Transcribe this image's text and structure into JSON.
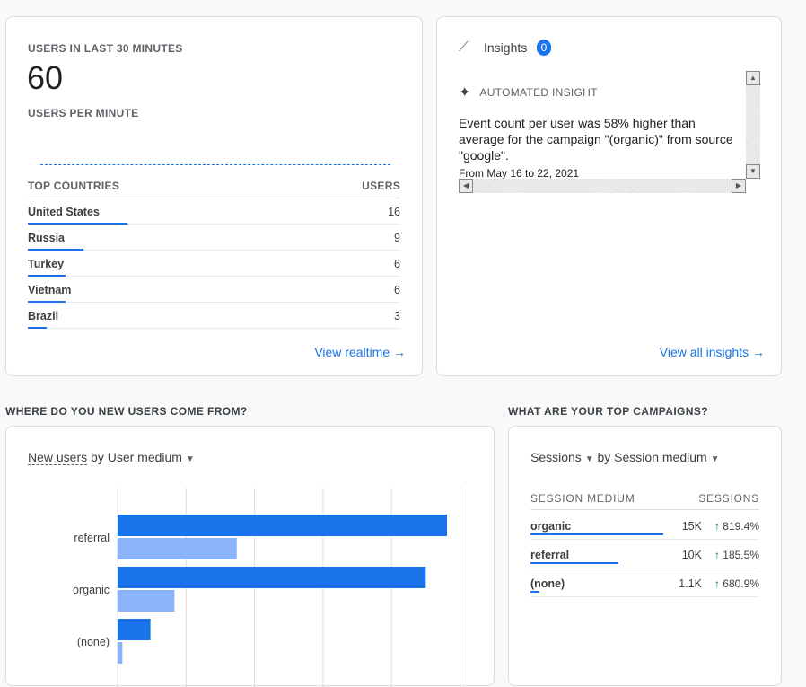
{
  "realtime": {
    "title": "USERS IN LAST 30 MINUTES",
    "value": "60",
    "subtitle": "USERS PER MINUTE",
    "table_headers": [
      "TOP COUNTRIES",
      "USERS"
    ],
    "countries": [
      {
        "name": "United States",
        "users": "16",
        "share": 1
      },
      {
        "name": "Russia",
        "users": "9",
        "share": 0.56
      },
      {
        "name": "Turkey",
        "users": "6",
        "share": 0.38
      },
      {
        "name": "Vietnam",
        "users": "6",
        "share": 0.38
      },
      {
        "name": "Brazil",
        "users": "3",
        "share": 0.19
      }
    ],
    "link": "View realtime"
  },
  "insights": {
    "title": "Insights",
    "badge": "0",
    "label": "AUTOMATED INSIGHT",
    "text": "Event count per user was 58% higher than average for the campaign \"(organic)\" from source \"google\".",
    "date": "From May 16 to 22, 2021",
    "link": "View all insights"
  },
  "section_left": "WHERE DO YOU NEW USERS COME FROM?",
  "section_right": "WHAT ARE YOUR TOP CAMPAIGNS?",
  "new_users": {
    "metric": "New users",
    "dimension": "by User medium"
  },
  "chart_data": {
    "type": "bar",
    "orientation": "horizontal",
    "categories": [
      "referral",
      "organic",
      "(none)"
    ],
    "series": [
      {
        "values": [
          4.81,
          4.5,
          0.48
        ],
        "color": "#1a73e8"
      },
      {
        "values": [
          1.74,
          0.83,
          0.07
        ],
        "color": "#8ab4f8"
      }
    ],
    "xlim": [
      0,
      5
    ],
    "grid": true
  },
  "campaigns": {
    "metric": "Sessions",
    "dimension": "by Session medium",
    "headers": [
      "SESSION MEDIUM",
      "SESSIONS"
    ],
    "rows": [
      {
        "name": "organic",
        "value": "15K",
        "change": "819.4%",
        "share": 1
      },
      {
        "name": "referral",
        "value": "10K",
        "change": "185.5%",
        "share": 0.66
      },
      {
        "name": "(none)",
        "value": "1.1K",
        "change": "680.9%",
        "share": 0.07
      }
    ]
  },
  "colors": {
    "accent": "#1a73e8",
    "up": "#137333"
  }
}
